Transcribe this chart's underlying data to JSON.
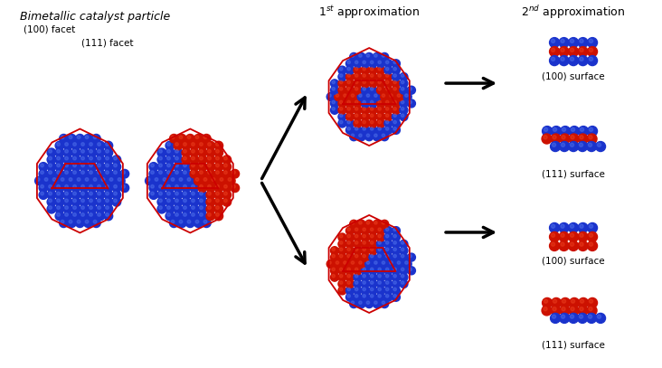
{
  "background_color": "#ffffff",
  "blue_color": "#1a33cc",
  "blue_highlight": "#5577ee",
  "red_color": "#cc1100",
  "red_highlight": "#ee4422",
  "text_color": "#000000",
  "facet_line_color": "#cc0000",
  "labels": {
    "title_left": "Bimetallic catalyst particle",
    "label_100": "(100) facet",
    "label_111": "(111) facet",
    "approx1": "1$^{st}$ approximation",
    "approx2": "2$^{nd}$ approximation",
    "surf_111_top": "(111) surface",
    "surf_100_top": "(100) surface",
    "surf_111_bot": "(111) surface",
    "surf_100_bot": "(100) surface"
  }
}
